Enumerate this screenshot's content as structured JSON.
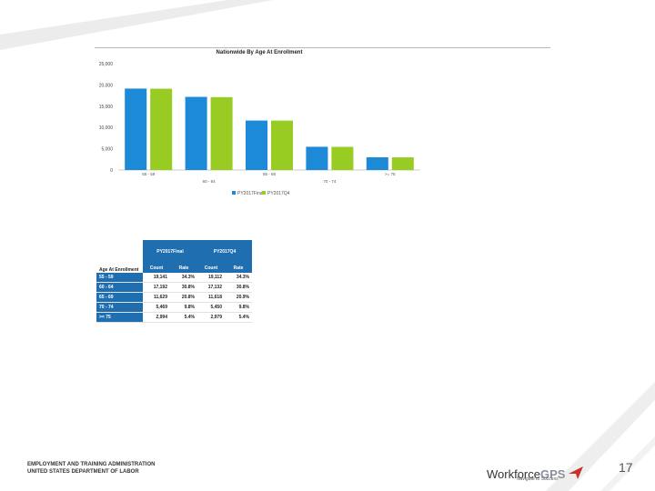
{
  "chart_data": {
    "type": "bar",
    "title": "Nationwide By Age At Enrollment",
    "categories": [
      "55 - 59",
      "60 - 64",
      "65 - 69",
      "70 - 74",
      ">= 75"
    ],
    "series": [
      {
        "name": "PY2017Final",
        "values": [
          19141,
          17192,
          11629,
          5469,
          2994
        ],
        "color": "#1c8ad6"
      },
      {
        "name": "PY2017Q4",
        "values": [
          19112,
          17132,
          11618,
          5450,
          2979
        ],
        "color": "#99cc22"
      }
    ],
    "ylim": [
      0,
      25000
    ],
    "yticks": [
      "0",
      "5,000",
      "10,000",
      "15,000",
      "20,000",
      "25,000"
    ],
    "ytick_values": [
      0,
      5000,
      10000,
      15000,
      20000,
      25000
    ]
  },
  "table": {
    "row_header": "Age At Enrollment",
    "groups": [
      "PY2017Final",
      "PY2017Q4"
    ],
    "subheaders": [
      "Count",
      "Rate",
      "Count",
      "Rate"
    ],
    "rows": [
      {
        "label": "55 - 59",
        "cells": [
          "19,141",
          "34.3%",
          "19,112",
          "34.3%"
        ]
      },
      {
        "label": "60 - 64",
        "cells": [
          "17,192",
          "30.8%",
          "17,132",
          "30.8%"
        ]
      },
      {
        "label": "65 - 69",
        "cells": [
          "11,629",
          "20.8%",
          "11,618",
          "20.9%"
        ]
      },
      {
        "label": "70 - 74",
        "cells": [
          "5,469",
          "9.8%",
          "5,450",
          "9.8%"
        ]
      },
      {
        "label": ">= 75",
        "cells": [
          "2,994",
          "5.4%",
          "2,979",
          "5.4%"
        ]
      }
    ]
  },
  "footer": {
    "agency_line1": "EMPLOYMENT AND TRAINING ADMINISTRATION",
    "agency_line2": "UNITED STATES DEPARTMENT OF LABOR",
    "logo_text": "Workforce",
    "logo_suffix": "GPS",
    "logo_tagline": "Navigate to Success",
    "page_number": "17"
  }
}
